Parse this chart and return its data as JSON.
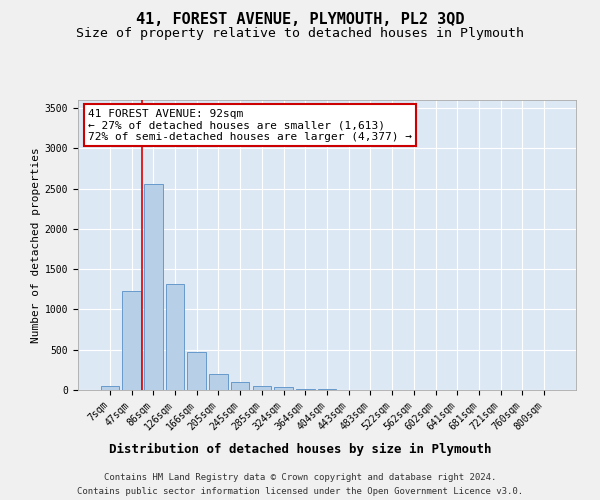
{
  "title": "41, FOREST AVENUE, PLYMOUTH, PL2 3QD",
  "subtitle": "Size of property relative to detached houses in Plymouth",
  "xlabel": "Distribution of detached houses by size in Plymouth",
  "ylabel": "Number of detached properties",
  "bar_color": "#b8cfe8",
  "bar_edge_color": "#6699cc",
  "bg_color": "#dde8f5",
  "grid_color": "#ffffff",
  "categories": [
    "7sqm",
    "47sqm",
    "86sqm",
    "126sqm",
    "166sqm",
    "205sqm",
    "245sqm",
    "285sqm",
    "324sqm",
    "364sqm",
    "404sqm",
    "443sqm",
    "483sqm",
    "522sqm",
    "562sqm",
    "602sqm",
    "641sqm",
    "681sqm",
    "721sqm",
    "760sqm",
    "800sqm"
  ],
  "values": [
    50,
    1230,
    2560,
    1310,
    470,
    195,
    105,
    50,
    35,
    18,
    10,
    5,
    2,
    1,
    0,
    0,
    0,
    0,
    0,
    0,
    0
  ],
  "ylim": [
    0,
    3600
  ],
  "yticks": [
    0,
    500,
    1000,
    1500,
    2000,
    2500,
    3000,
    3500
  ],
  "red_line_x": 1.5,
  "red_line_color": "#dd0000",
  "annotation_title": "41 FOREST AVENUE: 92sqm",
  "annotation_line1": "← 27% of detached houses are smaller (1,613)",
  "annotation_line2": "72% of semi-detached houses are larger (4,377) →",
  "annotation_box_color": "#ffffff",
  "annotation_border_color": "#cc0000",
  "footer_line1": "Contains HM Land Registry data © Crown copyright and database right 2024.",
  "footer_line2": "Contains public sector information licensed under the Open Government Licence v3.0.",
  "title_fontsize": 11,
  "subtitle_fontsize": 9.5,
  "xlabel_fontsize": 9,
  "ylabel_fontsize": 8,
  "tick_fontsize": 7,
  "footer_fontsize": 6.5,
  "annotation_fontsize": 8
}
